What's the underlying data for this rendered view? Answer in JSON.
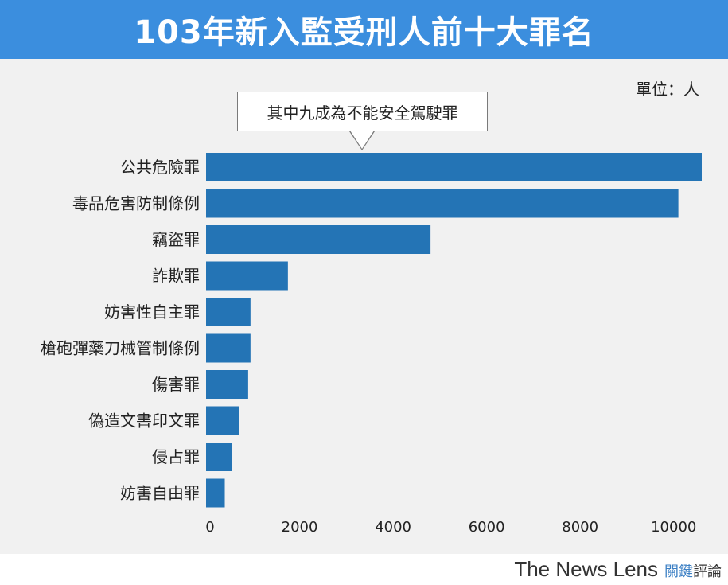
{
  "title": "103年新入監受刑人前十大罪名",
  "unit": "單位：人",
  "callout": "其中九成為不能安全駕駛罪",
  "brand": {
    "en": "The News Lens",
    "zh_highlight": "關鍵",
    "zh_rest": "評論"
  },
  "colors": {
    "header": "#3b8ede",
    "bar": "#2474b5",
    "panel": "#f1f1f1"
  },
  "chart_data": {
    "type": "bar",
    "orientation": "horizontal",
    "categories": [
      "公共危險罪",
      "毒品危害防制條例",
      "竊盜罪",
      "詐欺罪",
      "妨害性自主罪",
      "槍砲彈藥刀械管制條例",
      "傷害罪",
      "偽造文書印文罪",
      "侵占罪",
      "妨害自由罪"
    ],
    "values": [
      10600,
      10100,
      4800,
      1750,
      950,
      950,
      900,
      700,
      550,
      400
    ],
    "xlim": [
      0,
      10600
    ],
    "xticks": [
      0,
      2000,
      4000,
      6000,
      8000,
      10000
    ],
    "xlabel": "",
    "ylabel": "",
    "grid": false,
    "legend": "none"
  }
}
